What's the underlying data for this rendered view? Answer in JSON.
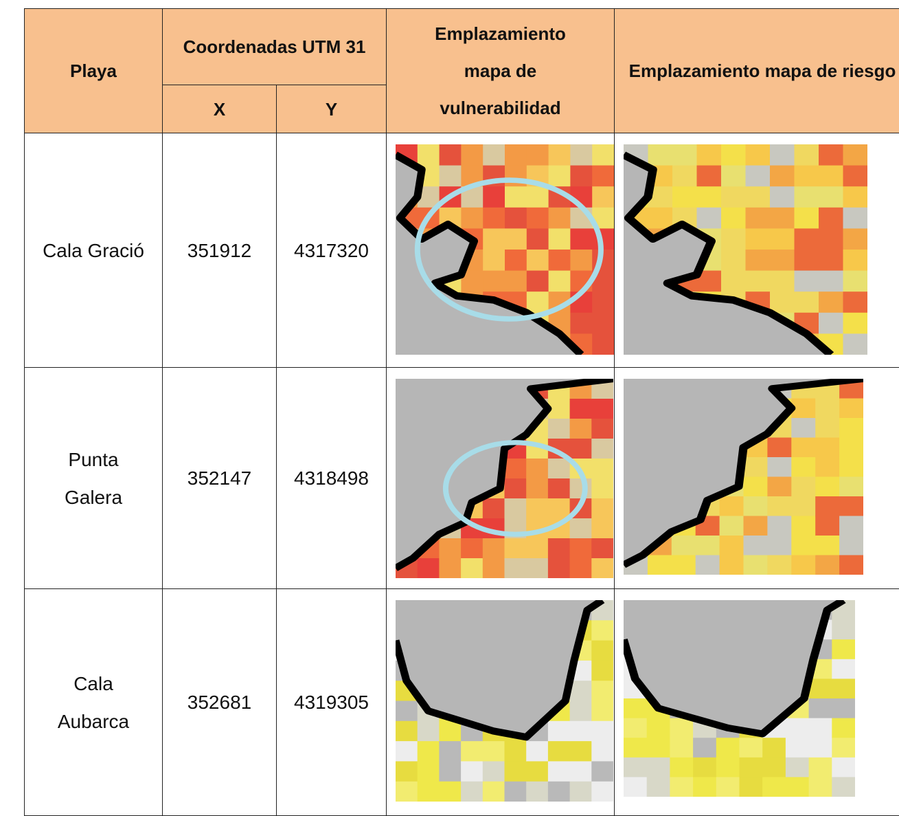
{
  "table": {
    "header": {
      "playa": "Playa",
      "coords": "Coordenadas UTM 31",
      "x": "X",
      "y": "Y",
      "vuln": "Emplazamiento mapa de vulnerabilidad",
      "riesgo": "Emplazamiento mapa de riesgo"
    },
    "rows": [
      [
        "Cala Gració",
        "351912",
        "4317320"
      ],
      [
        "Punta Galera",
        "352147",
        "4318498"
      ],
      [
        "Cala Aubarca",
        "352681",
        "4319305"
      ]
    ]
  }
}
